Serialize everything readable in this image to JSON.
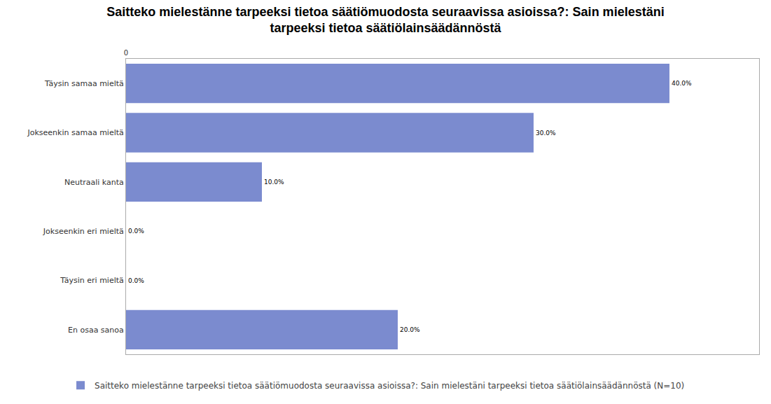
{
  "chart_data": {
    "type": "bar",
    "orientation": "horizontal",
    "title": "Saitteko mielestänne tarpeeksi tietoa säätiömuodosta seuraavissa asioissa?: Sain mielestäni tarpeeksi tietoa säätiölainsäädännöstä",
    "categories": [
      "Täysin samaa mieltä",
      "Jokseenkin samaa mieltä",
      "Neutraali kanta",
      "Jokseenkin eri mieltä",
      "Täysin eri mieltä",
      "En osaa sanoa"
    ],
    "series": [
      {
        "name": "Saitteko mielestänne tarpeeksi tietoa säätiömuodosta seuraavissa asioissa?: Sain mielestäni tarpeeksi tietoa säätiölainsäädännöstä (N=10)",
        "color": "#7b8bcf",
        "values": [
          40,
          30,
          10,
          0,
          0,
          20
        ],
        "value_labels": [
          "40.0%",
          "30.0%",
          "10.0%",
          "0.0%",
          "0.0%",
          "20.0%"
        ]
      }
    ],
    "xlim": [
      0,
      46.6
    ],
    "xticks": [
      0
    ],
    "grid": false,
    "data_labels": true,
    "legend": "bottom"
  }
}
